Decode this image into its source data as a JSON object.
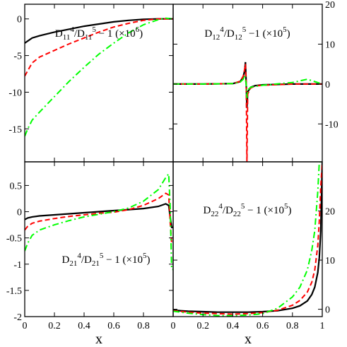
{
  "figure": {
    "x_axis_label": "x"
  },
  "colors": {
    "series_3": "#000000",
    "series_2": "#ff0000",
    "series_1": "#00ff00",
    "axes": "#000000",
    "background": "#ffffff"
  },
  "chart_data": [
    {
      "type": "line",
      "position": "top-left",
      "title_main": "D",
      "title_parts": [
        {
          "text": "D",
          "pos": "base"
        },
        {
          "text": "11",
          "pos": "sub"
        },
        {
          "text": "4",
          "pos": "sup"
        },
        {
          "text": "/D",
          "pos": "base"
        },
        {
          "text": "11",
          "pos": "sub"
        },
        {
          "text": "5",
          "pos": "sup"
        },
        {
          "text": " − 1 (×10",
          "pos": "base"
        },
        {
          "text": "6",
          "pos": "sup"
        },
        {
          "text": ")",
          "pos": "base"
        }
      ],
      "xlim": [
        0,
        1
      ],
      "ylim": [
        -19.5,
        2
      ],
      "y_ticks": [
        0,
        -5,
        -10,
        -15
      ],
      "y_tick_labels": [
        "0",
        "-5",
        "-10",
        "-15"
      ],
      "y_axis_side": "left",
      "x_tick_labels_shown": false,
      "series": [
        {
          "color": "#000000",
          "style": "solid",
          "x": [
            0,
            0.05,
            0.1,
            0.2,
            0.3,
            0.4,
            0.5,
            0.6,
            0.7,
            0.8,
            0.9,
            0.95,
            1.0
          ],
          "y": [
            -3.3,
            -2.6,
            -2.3,
            -1.8,
            -1.4,
            -1.0,
            -0.7,
            -0.4,
            -0.2,
            -0.05,
            0,
            0,
            0
          ]
        },
        {
          "color": "#ff0000",
          "style": "dashed",
          "x": [
            0,
            0.05,
            0.1,
            0.2,
            0.3,
            0.4,
            0.5,
            0.6,
            0.7,
            0.8,
            0.9,
            0.95,
            1.0
          ],
          "y": [
            -7.8,
            -6.0,
            -5.2,
            -4.3,
            -3.4,
            -2.6,
            -1.8,
            -1.1,
            -0.6,
            -0.2,
            0,
            0,
            0
          ]
        },
        {
          "color": "#00ff00",
          "style": "dashdot",
          "x": [
            0,
            0.02,
            0.05,
            0.1,
            0.2,
            0.3,
            0.4,
            0.5,
            0.6,
            0.7,
            0.8,
            0.9,
            0.95,
            1.0
          ],
          "y": [
            -16,
            -15,
            -13.8,
            -12.7,
            -10.6,
            -8.5,
            -6.6,
            -4.8,
            -3.3,
            -1.9,
            -0.8,
            -0.1,
            0.1,
            0
          ]
        }
      ]
    },
    {
      "type": "line",
      "position": "top-right",
      "title_parts": [
        {
          "text": "D",
          "pos": "base"
        },
        {
          "text": "12",
          "pos": "sub"
        },
        {
          "text": "4",
          "pos": "sup"
        },
        {
          "text": "/D",
          "pos": "base"
        },
        {
          "text": "12",
          "pos": "sub"
        },
        {
          "text": "5",
          "pos": "sup"
        },
        {
          "text": " −1 (×10",
          "pos": "base"
        },
        {
          "text": "5",
          "pos": "sup"
        },
        {
          "text": ")",
          "pos": "base"
        }
      ],
      "xlim": [
        0,
        1
      ],
      "ylim": [
        -19.5,
        20
      ],
      "y_ticks": [
        20,
        10,
        0,
        -10
      ],
      "y_tick_labels": [
        "20",
        "10",
        "0",
        "-10"
      ],
      "y_axis_side": "right",
      "x_tick_labels_shown": false,
      "series": [
        {
          "color": "#000000",
          "style": "solid",
          "x": [
            0,
            0.2,
            0.4,
            0.45,
            0.47,
            0.48,
            0.485,
            0.49,
            0.495,
            0.5,
            0.52,
            0.55,
            0.6,
            0.8,
            1.0
          ],
          "y": [
            0,
            0,
            0.1,
            0.6,
            1.8,
            3.5,
            5.5,
            0,
            -6,
            -2,
            -0.8,
            -0.4,
            -0.2,
            0,
            0
          ]
        },
        {
          "color": "#ff0000",
          "style": "dashed",
          "x": [
            0,
            0.2,
            0.4,
            0.45,
            0.47,
            0.48,
            0.485,
            0.49,
            0.495,
            0.5,
            0.52,
            0.55,
            0.6,
            0.8,
            1.0
          ],
          "y": [
            0,
            0,
            0.1,
            0.7,
            2.0,
            3.8,
            5.0,
            0,
            -19.5,
            -2.5,
            -1.0,
            -0.5,
            -0.3,
            0,
            0
          ]
        },
        {
          "color": "#00ff00",
          "style": "dashdot",
          "x": [
            0,
            0.2,
            0.4,
            0.45,
            0.47,
            0.48,
            0.49,
            0.495,
            0.5,
            0.52,
            0.6,
            0.8,
            0.9,
            0.95,
            1.0
          ],
          "y": [
            0,
            0,
            0.1,
            0.5,
            1.2,
            2.2,
            0,
            -3.5,
            -1.5,
            -0.8,
            -0.3,
            0.4,
            1.2,
            0.6,
            0
          ]
        }
      ]
    },
    {
      "type": "line",
      "position": "bottom-left",
      "title_parts": [
        {
          "text": "D",
          "pos": "base"
        },
        {
          "text": "21",
          "pos": "sub"
        },
        {
          "text": "4",
          "pos": "sup"
        },
        {
          "text": "/D",
          "pos": "base"
        },
        {
          "text": "21",
          "pos": "sub"
        },
        {
          "text": "5",
          "pos": "sup"
        },
        {
          "text": " − 1 (×10",
          "pos": "base"
        },
        {
          "text": "5",
          "pos": "sup"
        },
        {
          "text": ")",
          "pos": "base"
        }
      ],
      "xlim": [
        0,
        1
      ],
      "ylim": [
        -2,
        0.95
      ],
      "y_ticks": [
        0.5,
        0,
        -0.5,
        -1,
        -1.5,
        -2
      ],
      "y_tick_labels": [
        "0.5",
        "0",
        "-0.5",
        "-1",
        "-1.5",
        "-2"
      ],
      "y_axis_side": "left",
      "x_ticks": [
        0,
        0.2,
        0.4,
        0.6,
        0.8
      ],
      "x_tick_labels": [
        "0",
        "0.2",
        "0.4",
        "0.6",
        "0.8"
      ],
      "x_tick_labels_shown": true,
      "series": [
        {
          "color": "#000000",
          "style": "solid",
          "x": [
            0,
            0.02,
            0.05,
            0.1,
            0.2,
            0.3,
            0.4,
            0.5,
            0.6,
            0.7,
            0.8,
            0.9,
            0.95,
            0.97,
            0.98,
            0.99,
            1.0
          ],
          "y": [
            -0.15,
            -0.12,
            -0.1,
            -0.08,
            -0.06,
            -0.04,
            -0.02,
            0,
            0.02,
            0.04,
            0.06,
            0.1,
            0.15,
            0.12,
            -0.1,
            -0.3,
            -0.3
          ]
        },
        {
          "color": "#ff0000",
          "style": "dashed",
          "x": [
            0,
            0.02,
            0.05,
            0.1,
            0.2,
            0.3,
            0.4,
            0.5,
            0.6,
            0.7,
            0.8,
            0.9,
            0.95,
            0.97,
            0.98,
            0.99,
            1.0
          ],
          "y": [
            -0.35,
            -0.28,
            -0.22,
            -0.18,
            -0.13,
            -0.09,
            -0.06,
            -0.03,
            -0.01,
            0.04,
            0.12,
            0.25,
            0.35,
            0.32,
            -0.2,
            -0.6,
            -0.6
          ]
        },
        {
          "color": "#00ff00",
          "style": "dashdot",
          "x": [
            0,
            0.02,
            0.05,
            0.1,
            0.2,
            0.3,
            0.4,
            0.5,
            0.6,
            0.7,
            0.8,
            0.9,
            0.95,
            0.97,
            0.98,
            0.99,
            1.0
          ],
          "y": [
            -0.75,
            -0.6,
            -0.45,
            -0.35,
            -0.25,
            -0.17,
            -0.1,
            -0.05,
            0,
            0.07,
            0.2,
            0.42,
            0.65,
            0.72,
            0.1,
            -1.1,
            -1.1
          ]
        }
      ]
    },
    {
      "type": "line",
      "position": "bottom-right",
      "title_parts": [
        {
          "text": "D",
          "pos": "base"
        },
        {
          "text": "22",
          "pos": "sub"
        },
        {
          "text": "4",
          "pos": "sup"
        },
        {
          "text": "/D",
          "pos": "base"
        },
        {
          "text": "22",
          "pos": "sub"
        },
        {
          "text": "5",
          "pos": "sup"
        },
        {
          "text": " − 1 (×10",
          "pos": "base"
        },
        {
          "text": "5",
          "pos": "sup"
        },
        {
          "text": ")",
          "pos": "base"
        }
      ],
      "xlim": [
        0,
        1
      ],
      "ylim": [
        -1.5,
        30
      ],
      "y_ticks": [
        20,
        10,
        0
      ],
      "y_tick_labels": [
        "20",
        "10",
        "0"
      ],
      "y_axis_side": "right",
      "x_ticks": [
        0,
        0.2,
        0.4,
        0.6,
        0.8,
        1
      ],
      "x_tick_labels": [
        "0",
        "0.2",
        "0.4",
        "0.6",
        "0.8",
        "1"
      ],
      "x_tick_labels_shown": true,
      "series": [
        {
          "color": "#000000",
          "style": "solid",
          "x": [
            0,
            0.1,
            0.2,
            0.3,
            0.4,
            0.5,
            0.6,
            0.7,
            0.8,
            0.85,
            0.9,
            0.93,
            0.95,
            0.97,
            0.98,
            0.99,
            1.0
          ],
          "y": [
            -0.2,
            -0.4,
            -0.5,
            -0.6,
            -0.6,
            -0.6,
            -0.5,
            -0.3,
            0.2,
            0.7,
            1.7,
            3,
            4.5,
            7.5,
            10.5,
            16,
            30
          ]
        },
        {
          "color": "#ff0000",
          "style": "dashed",
          "x": [
            0,
            0.1,
            0.2,
            0.3,
            0.4,
            0.5,
            0.6,
            0.7,
            0.8,
            0.85,
            0.9,
            0.93,
            0.95,
            0.97,
            0.98,
            0.99,
            1.0
          ],
          "y": [
            -0.3,
            -0.6,
            -0.8,
            -0.9,
            -1.0,
            -0.9,
            -0.7,
            -0.2,
            0.8,
            1.8,
            3.5,
            5.5,
            8,
            13,
            18,
            25,
            30
          ]
        },
        {
          "color": "#00ff00",
          "style": "dashdot",
          "x": [
            0,
            0.1,
            0.2,
            0.3,
            0.4,
            0.5,
            0.6,
            0.7,
            0.8,
            0.85,
            0.9,
            0.93,
            0.95,
            0.97,
            0.98,
            1.0
          ],
          "y": [
            -0.4,
            -0.8,
            -1.1,
            -1.3,
            -1.3,
            -1.2,
            -0.9,
            0.2,
            2.5,
            4.5,
            8,
            12,
            16,
            24,
            30,
            30
          ]
        }
      ]
    }
  ]
}
